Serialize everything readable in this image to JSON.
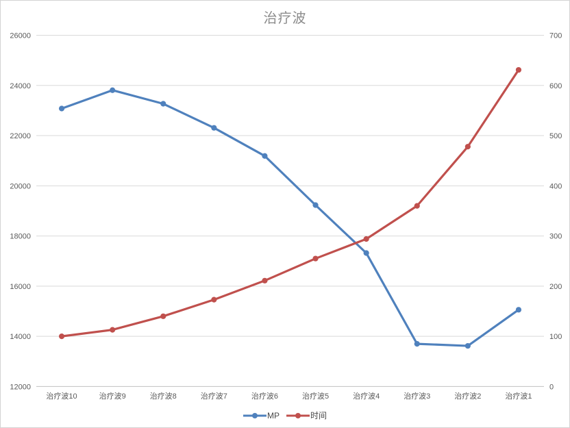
{
  "title": "治疗波",
  "colors": {
    "series_mp": "#4f81bd",
    "series_time": "#c0504d",
    "gridline": "#d9d9d9",
    "axis_line": "#c0c0c0",
    "axis_text": "#595959",
    "title_text": "#8c8c8c",
    "border": "#d3d3d3",
    "background": "#ffffff"
  },
  "chart_data": {
    "type": "line",
    "title": "治疗波",
    "categories": [
      "治疗波10",
      "治疗波9",
      "治疗波8",
      "治疗波7",
      "治疗波6",
      "治疗波5",
      "治疗波4",
      "治疗波3",
      "治疗波2",
      "治疗波1"
    ],
    "series": [
      {
        "name": "MP",
        "axis": "left",
        "color": "#4f81bd",
        "values": [
          23080,
          23810,
          23270,
          22310,
          21190,
          19230,
          17320,
          13700,
          13620,
          15060
        ]
      },
      {
        "name": "时间",
        "axis": "right",
        "color": "#c0504d",
        "values": [
          100,
          113,
          140,
          173,
          211,
          255,
          294,
          360,
          478,
          631
        ]
      }
    ],
    "left_axis": {
      "min": 12000,
      "max": 26000,
      "step": 2000,
      "tick_labels_top_to_bottom": [
        "26000",
        "24000",
        "22000",
        "20000",
        "18000",
        "16000",
        "14000",
        "12000"
      ]
    },
    "right_axis": {
      "min": 0,
      "max": 700,
      "step": 100,
      "tick_labels_top_to_bottom": [
        "700",
        "600",
        "500",
        "400",
        "300",
        "200",
        "100",
        "0"
      ]
    },
    "grid": true,
    "marker": "circle",
    "legend_position": "bottom"
  },
  "legend": {
    "items": [
      {
        "label": "MP",
        "color": "#4f81bd"
      },
      {
        "label": "时间",
        "color": "#c0504d"
      }
    ]
  }
}
